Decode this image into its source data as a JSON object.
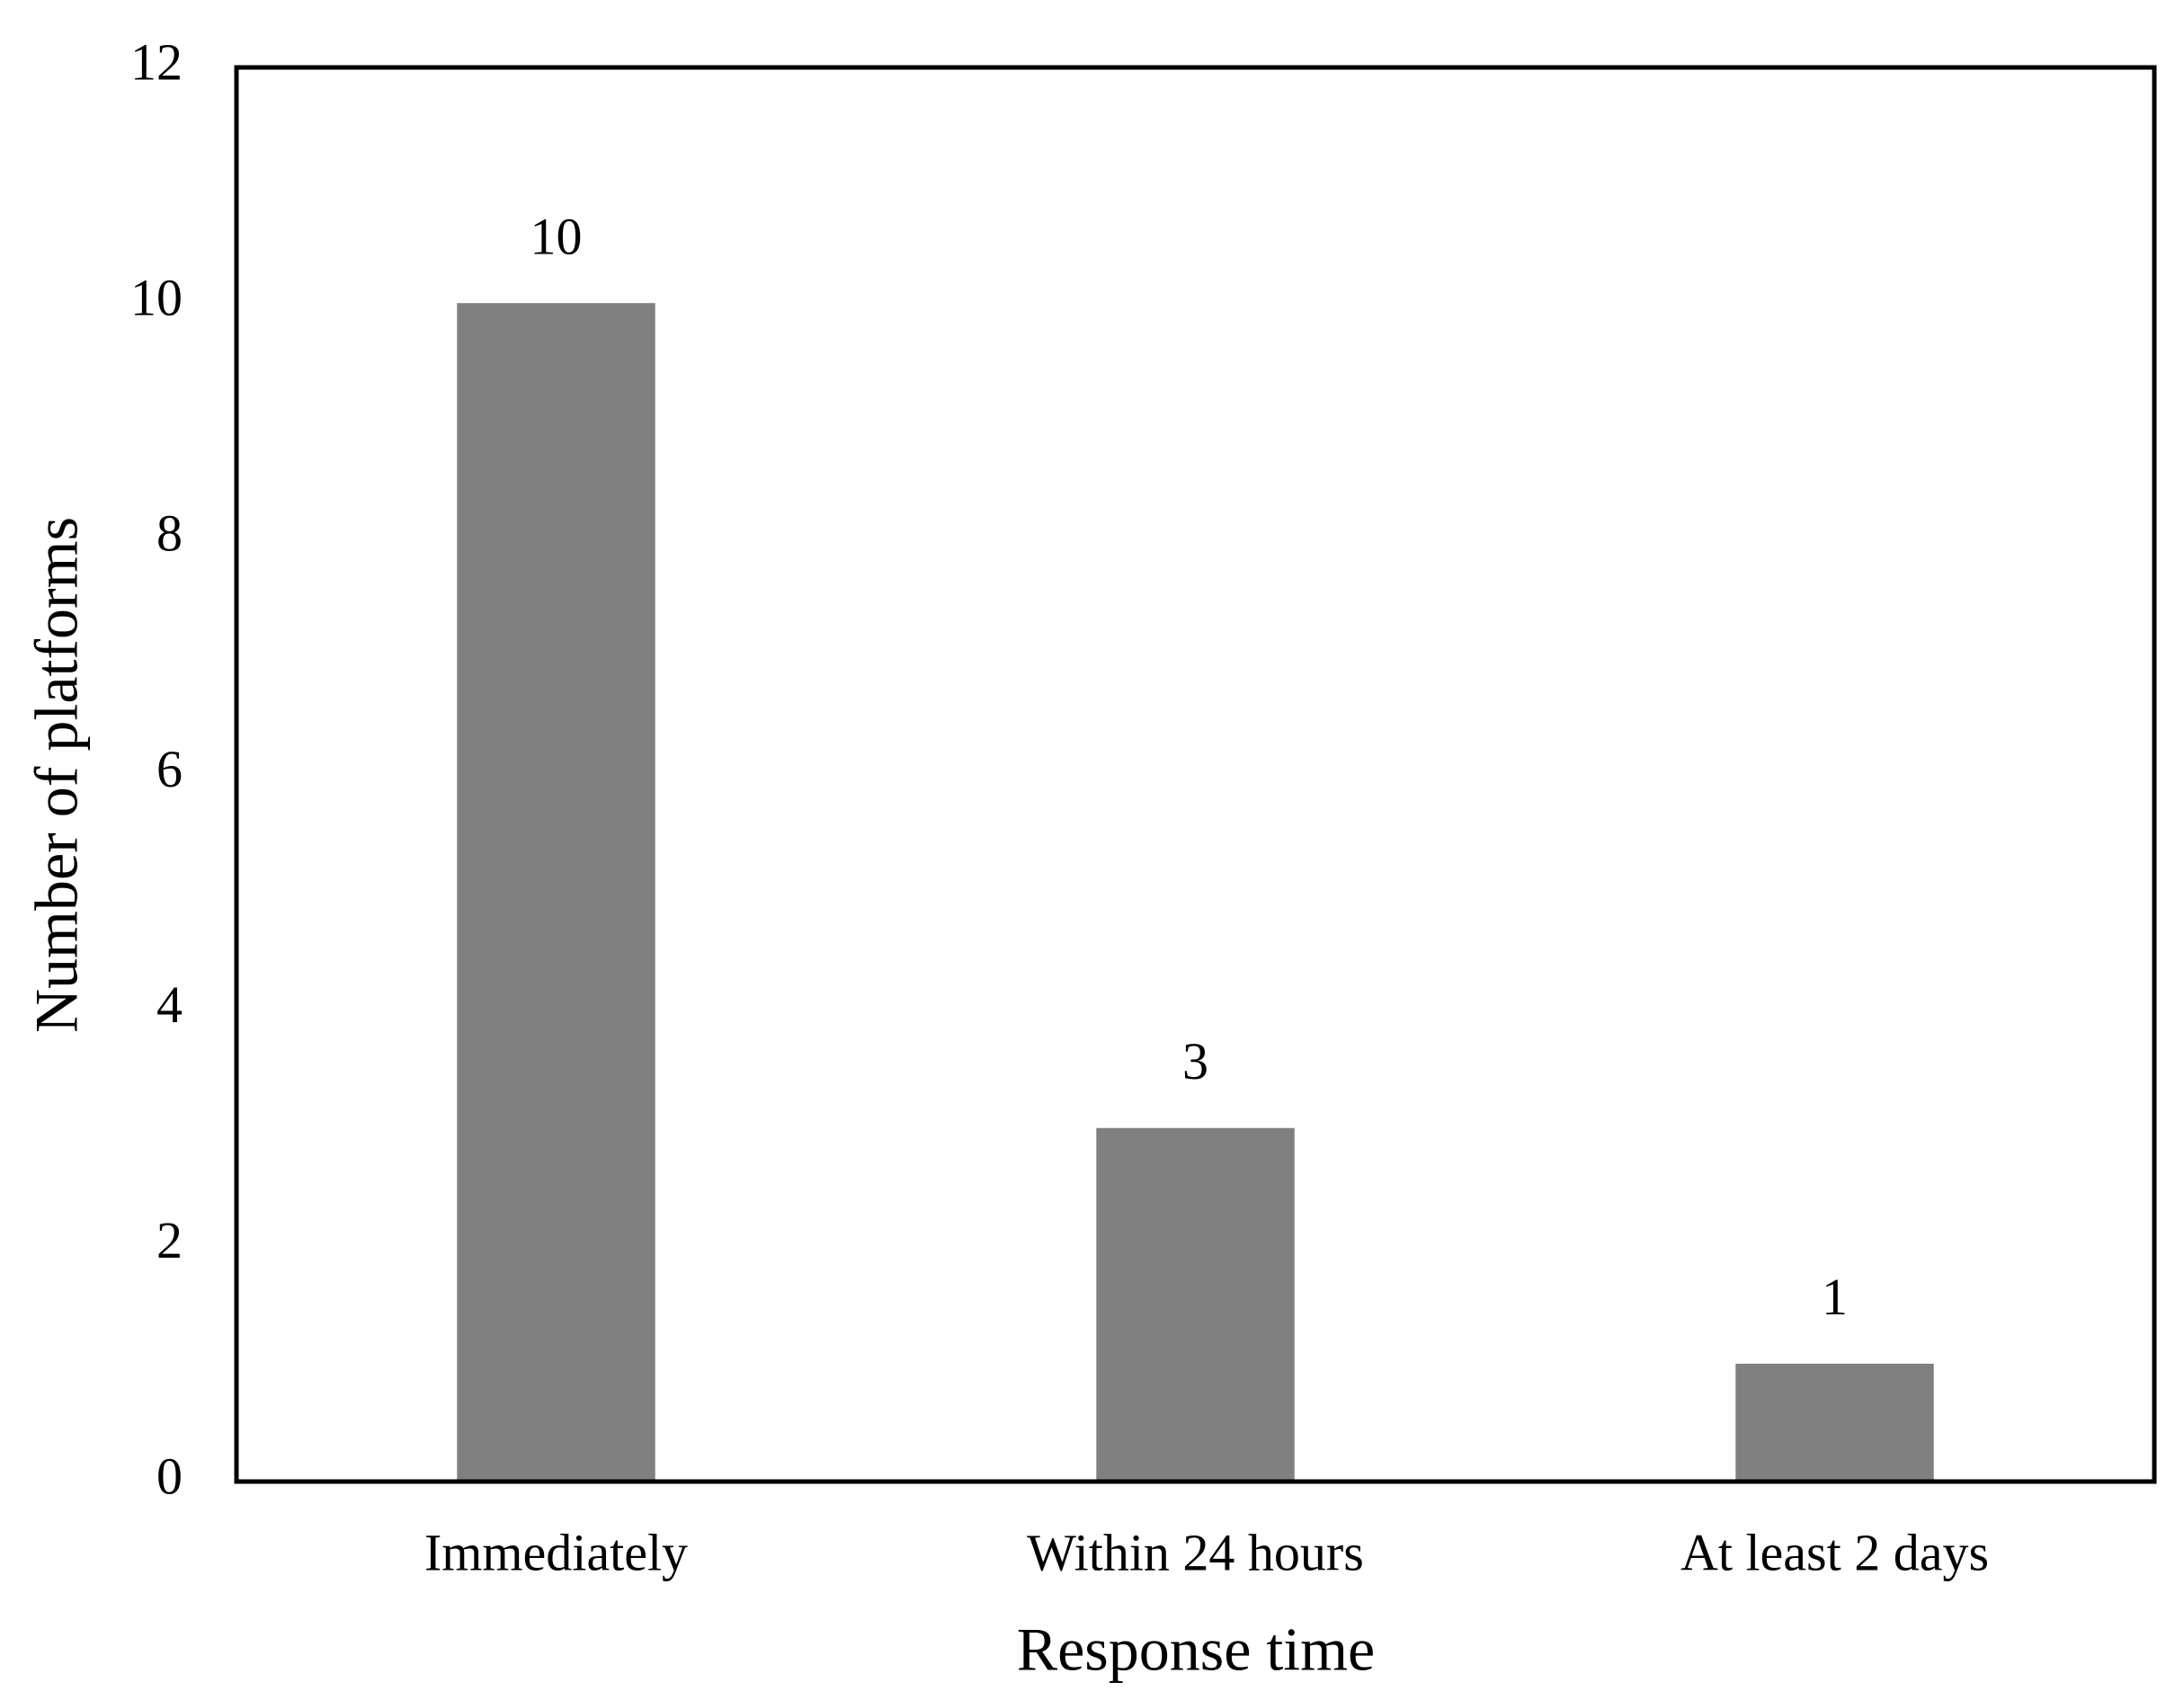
{
  "chart_data": {
    "type": "bar",
    "x_label": "Response time",
    "y_label": "Number of platforms",
    "categories": [
      "Immediately",
      "Within 24 hours",
      "At least 2 days"
    ],
    "values": [
      10,
      3,
      1
    ],
    "color": "#808080",
    "ylim": [
      0,
      12
    ],
    "yticks": [
      0,
      2,
      4,
      6,
      8,
      10,
      12
    ],
    "grid": false
  }
}
